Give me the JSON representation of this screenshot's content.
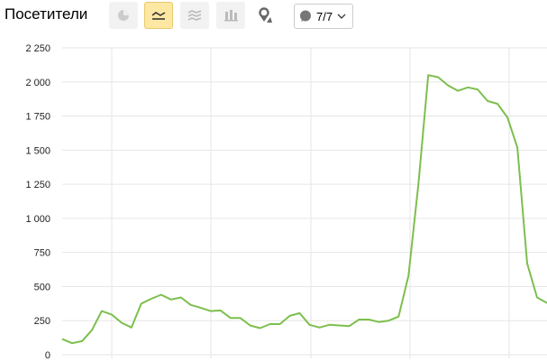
{
  "header": {
    "title": "Посетители",
    "annotations_label": "7/7"
  },
  "toolbar": {
    "icons": [
      "pie-chart-icon",
      "line-chart-icon",
      "area-chart-icon",
      "bar-chart-icon",
      "map-pin-icon"
    ],
    "active": "line-chart-icon"
  },
  "chart_data": {
    "type": "line",
    "title": "",
    "xlabel": "",
    "ylabel": "",
    "ylim": [
      0,
      2250
    ],
    "yticks": [
      0,
      250,
      500,
      750,
      1000,
      1250,
      1500,
      1750,
      2000,
      2250
    ],
    "ytick_labels": [
      "0",
      "250",
      "500",
      "750",
      "1 000",
      "1 250",
      "1 500",
      "1 750",
      "2 000",
      "2 250"
    ],
    "grid": true,
    "color": "#7dbf4e",
    "values": [
      115,
      85,
      100,
      180,
      320,
      295,
      235,
      200,
      375,
      410,
      440,
      405,
      420,
      365,
      345,
      320,
      325,
      270,
      270,
      215,
      195,
      225,
      225,
      285,
      305,
      220,
      200,
      220,
      215,
      210,
      258,
      258,
      240,
      250,
      280,
      580,
      1250,
      2050,
      2035,
      1975,
      1935,
      1960,
      1945,
      1860,
      1840,
      1740,
      1520,
      670,
      420,
      380
    ]
  }
}
